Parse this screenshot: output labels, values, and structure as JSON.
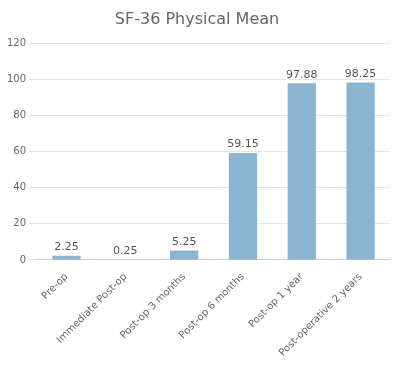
{
  "chart_data": {
    "type": "bar",
    "title": "SF-36 Physical Mean",
    "categories": [
      "Pre-op",
      "Immediate Post-op",
      "Post-op 3 months",
      "Post-op 6 months",
      "Post-op 1 year",
      "Post-operative 2 years"
    ],
    "values": [
      2.25,
      0.25,
      5.25,
      59.15,
      97.88,
      98.25
    ],
    "color": "#8ab4d0",
    "ylim": [
      0,
      120
    ],
    "yticks": [
      0,
      20,
      40,
      60,
      80,
      100,
      120
    ],
    "grid": true,
    "data_labels": true
  }
}
